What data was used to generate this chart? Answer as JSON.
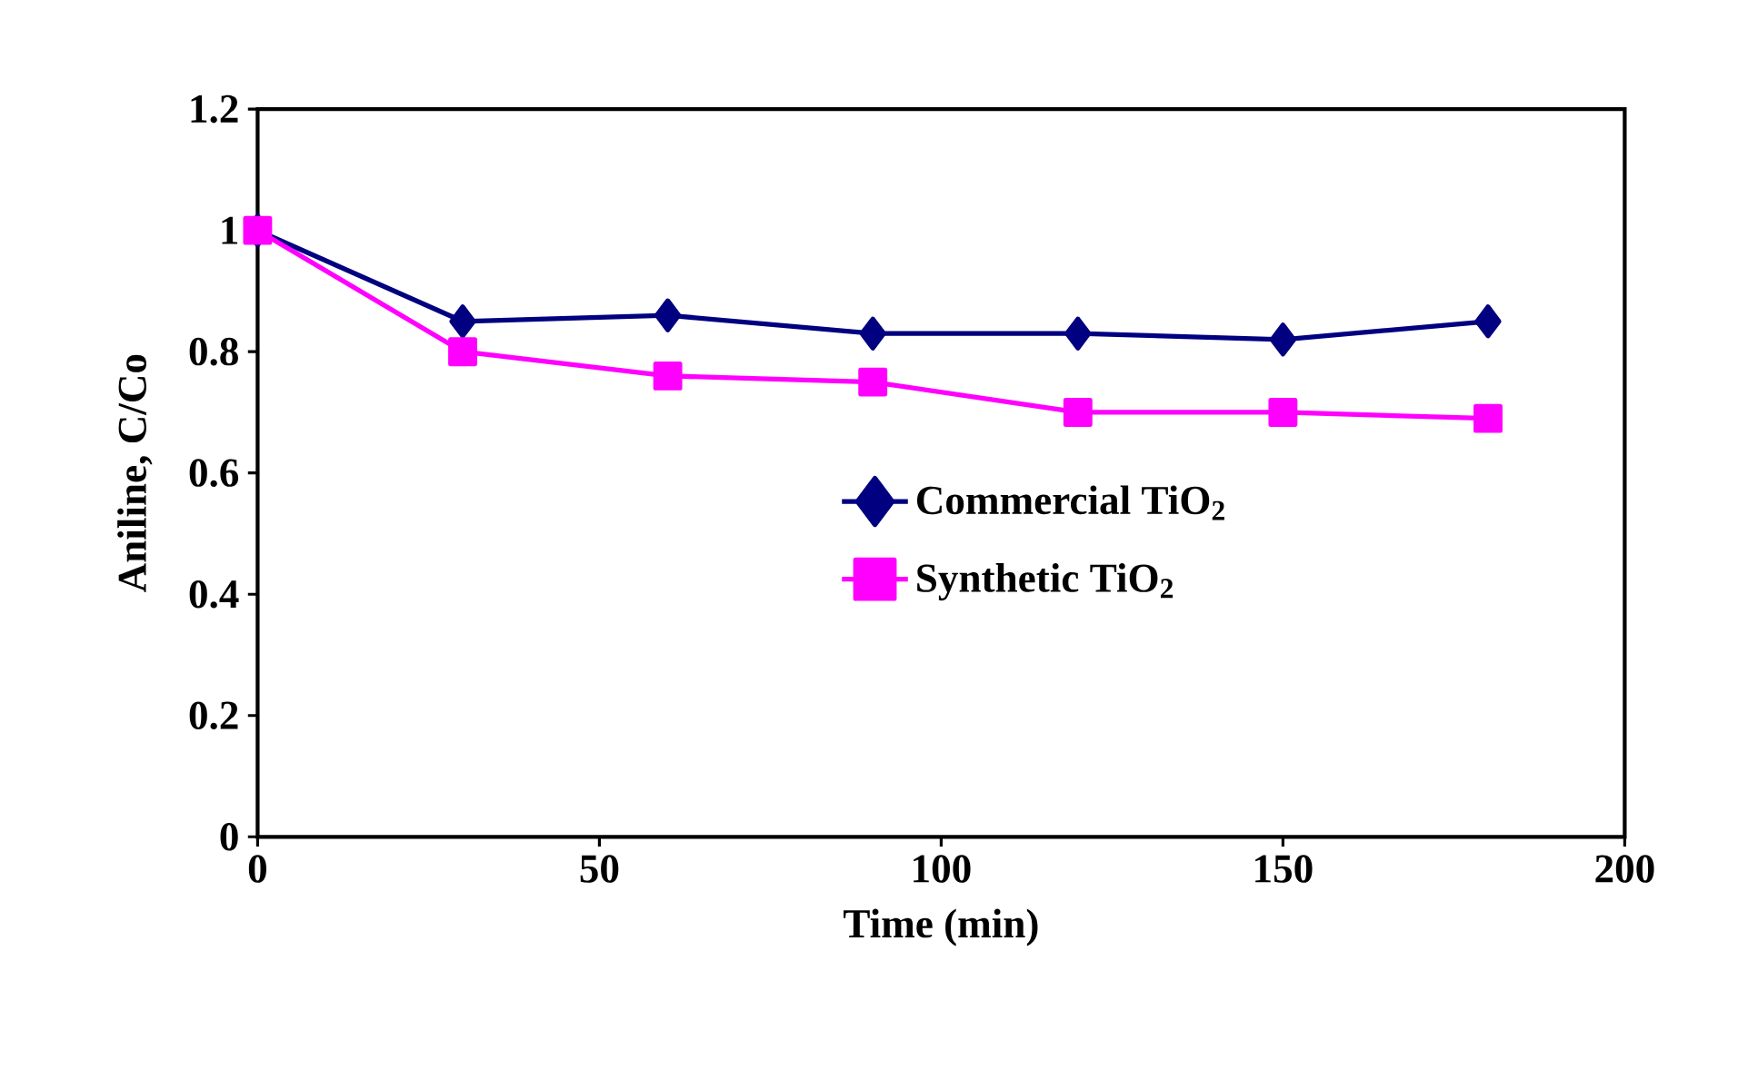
{
  "chart_data": {
    "type": "line",
    "xlabel": "Time (min)",
    "ylabel": "Aniline, C/Co",
    "x": [
      0,
      30,
      60,
      90,
      120,
      150,
      180
    ],
    "series": [
      {
        "name": "Commercial TiO$_{2}$",
        "color": "#000080",
        "marker": "diamond",
        "values": [
          1.0,
          0.85,
          0.86,
          0.83,
          0.83,
          0.82,
          0.85
        ]
      },
      {
        "name": "Synthetic TiO$_{2}$",
        "color": "#ff00ff",
        "marker": "square",
        "values": [
          1.0,
          0.8,
          0.76,
          0.75,
          0.7,
          0.7,
          0.69
        ]
      }
    ],
    "xlim": [
      0,
      200
    ],
    "xticks": [
      0,
      50,
      100,
      150,
      200
    ],
    "ylim": [
      0,
      1.2
    ],
    "yticks": [
      0,
      0.2,
      0.4,
      0.6,
      0.8,
      1,
      1.2
    ],
    "legend": "right",
    "grid": false,
    "line_style": "solid"
  }
}
